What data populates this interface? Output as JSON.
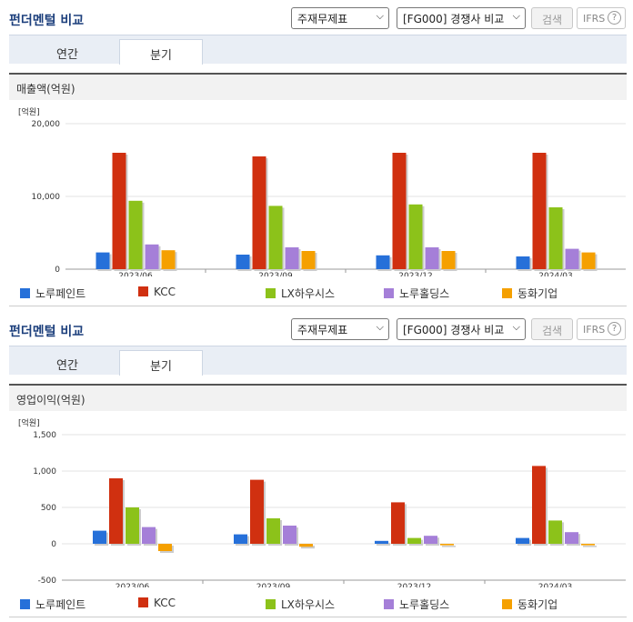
{
  "panels": [
    {
      "header": {
        "title": "펀더멘털 비교",
        "select1": "주재무제표",
        "select2": "[FG000] 경쟁사 비교",
        "search": "검색",
        "ifrs": "IFRS",
        "help": "?"
      },
      "tabs": [
        {
          "label": "연간",
          "active": false
        },
        {
          "label": "분기",
          "active": true
        }
      ],
      "section_title": "매출액(억원)"
    },
    {
      "header": {
        "title": "펀더멘털 비교",
        "select1": "주재무제표",
        "select2": "[FG000] 경쟁사 비교",
        "search": "검색",
        "ifrs": "IFRS",
        "help": "?"
      },
      "tabs": [
        {
          "label": "연간",
          "active": false
        },
        {
          "label": "분기",
          "active": true
        }
      ],
      "section_title": "영업이익(억원)"
    }
  ],
  "legend_items": [
    "노루페인트",
    "KCC",
    "LX하우시스",
    "노루홀딩스",
    "동화기업"
  ],
  "chart_data": [
    {
      "type": "bar",
      "unit_label": "[억원]",
      "categories": [
        "2023/06",
        "2023/09",
        "2023/12",
        "2024/03"
      ],
      "ylim": [
        0,
        20000
      ],
      "yticks": [
        "0",
        "10,000",
        "20,000"
      ],
      "ytick_values": [
        0,
        10000,
        20000
      ],
      "series": [
        {
          "name": "노루페인트",
          "color": "#2670d9",
          "values": [
            2300,
            2000,
            1900,
            1750
          ]
        },
        {
          "name": "KCC",
          "color": "#d03010",
          "values": [
            16000,
            15500,
            16000,
            16000
          ]
        },
        {
          "name": "LX하우시스",
          "color": "#8cc21a",
          "values": [
            9400,
            8700,
            8900,
            8500
          ]
        },
        {
          "name": "노루홀딩스",
          "color": "#a57fd8",
          "values": [
            3400,
            3000,
            3000,
            2800
          ]
        },
        {
          "name": "동화기업",
          "color": "#f5a000",
          "values": [
            2600,
            2500,
            2500,
            2300
          ]
        }
      ]
    },
    {
      "type": "bar",
      "unit_label": "[억원]",
      "categories": [
        "2023/06",
        "2023/09",
        "2023/12",
        "2024/03"
      ],
      "ylim": [
        -500,
        1500
      ],
      "yticks": [
        "-500",
        "0",
        "500",
        "1,000",
        "1,500"
      ],
      "ytick_values": [
        -500,
        0,
        500,
        1000,
        1500
      ],
      "series": [
        {
          "name": "노루페인트",
          "color": "#2670d9",
          "values": [
            180,
            130,
            40,
            80
          ]
        },
        {
          "name": "KCC",
          "color": "#d03010",
          "values": [
            900,
            880,
            570,
            1070
          ]
        },
        {
          "name": "LX하우시스",
          "color": "#8cc21a",
          "values": [
            500,
            350,
            80,
            320
          ]
        },
        {
          "name": "노루홀딩스",
          "color": "#a57fd8",
          "values": [
            230,
            250,
            110,
            160
          ]
        },
        {
          "name": "동화기업",
          "color": "#f5a000",
          "values": [
            -100,
            -40,
            -20,
            -20
          ]
        }
      ]
    }
  ]
}
